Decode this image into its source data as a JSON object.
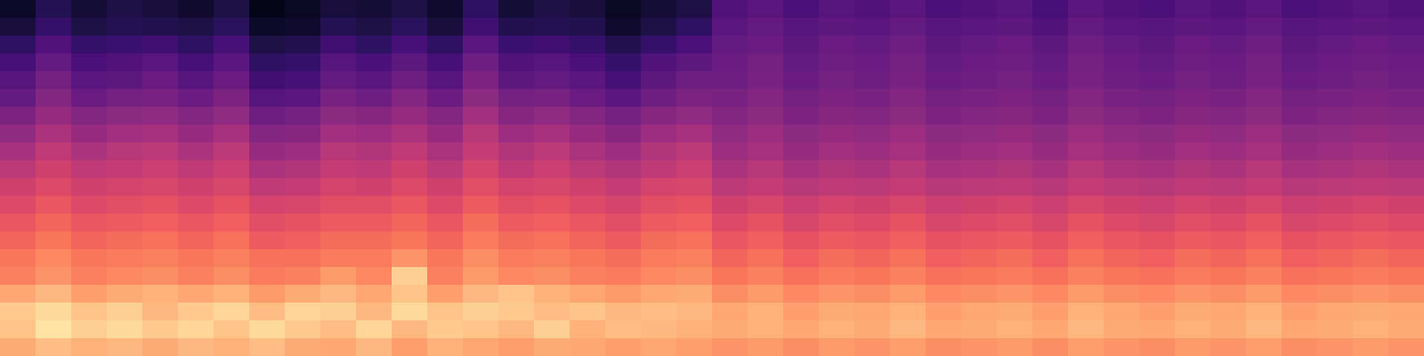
{
  "chart_data": {
    "type": "heatmap",
    "color": "magma",
    "zlim": [
      -80,
      0
    ],
    "tick_labels": false,
    "z": [
      [
        -74,
        -68,
        -72,
        -70,
        -71,
        -73,
        -70,
        -76,
        -75,
        -71,
        -72,
        -70,
        -73,
        -66,
        -72,
        -70,
        -71,
        -75,
        -72,
        -70,
        -60,
        -58,
        -61,
        -59,
        -60,
        -58,
        -61,
        -60,
        -59,
        -62,
        -58,
        -60,
        -61,
        -59,
        -60,
        -58,
        -61,
        -60,
        -59,
        -60
      ],
      [
        -71,
        -65,
        -70,
        -68,
        -69,
        -70,
        -67,
        -74,
        -73,
        -68,
        -70,
        -67,
        -71,
        -63,
        -69,
        -68,
        -69,
        -73,
        -70,
        -66,
        -58,
        -56,
        -59,
        -57,
        -58,
        -56,
        -59,
        -58,
        -57,
        -60,
        -56,
        -58,
        -59,
        -57,
        -58,
        -56,
        -59,
        -58,
        -57,
        -58
      ],
      [
        -66,
        -60,
        -65,
        -64,
        -63,
        -66,
        -62,
        -70,
        -69,
        -63,
        -66,
        -62,
        -66,
        -58,
        -64,
        -63,
        -65,
        -69,
        -65,
        -61,
        -56,
        -55,
        -57,
        -55,
        -56,
        -54,
        -57,
        -56,
        -55,
        -57,
        -54,
        -56,
        -57,
        -55,
        -56,
        -54,
        -57,
        -56,
        -55,
        -56
      ],
      [
        -62,
        -56,
        -61,
        -60,
        -58,
        -62,
        -58,
        -66,
        -65,
        -59,
        -61,
        -57,
        -62,
        -54,
        -60,
        -59,
        -61,
        -65,
        -60,
        -57,
        -55,
        -53,
        -56,
        -54,
        -55,
        -53,
        -56,
        -55,
        -54,
        -56,
        -53,
        -55,
        -56,
        -54,
        -55,
        -53,
        -56,
        -55,
        -54,
        -55
      ],
      [
        -59,
        -53,
        -58,
        -57,
        -55,
        -59,
        -55,
        -63,
        -62,
        -56,
        -58,
        -54,
        -59,
        -51,
        -57,
        -56,
        -58,
        -62,
        -57,
        -54,
        -54,
        -52,
        -55,
        -53,
        -54,
        -52,
        -55,
        -54,
        -53,
        -55,
        -52,
        -54,
        -55,
        -53,
        -54,
        -52,
        -55,
        -54,
        -53,
        -54
      ],
      [
        -56,
        -50,
        -55,
        -53,
        -52,
        -55,
        -51,
        -59,
        -58,
        -52,
        -54,
        -50,
        -55,
        -48,
        -53,
        -52,
        -55,
        -58,
        -54,
        -51,
        -52,
        -50,
        -53,
        -51,
        -52,
        -50,
        -53,
        -52,
        -51,
        -53,
        -50,
        -52,
        -53,
        -51,
        -52,
        -50,
        -53,
        -52,
        -51,
        -52
      ],
      [
        -51,
        -46,
        -50,
        -48,
        -47,
        -50,
        -47,
        -54,
        -53,
        -48,
        -49,
        -46,
        -50,
        -44,
        -49,
        -47,
        -50,
        -53,
        -49,
        -47,
        -50,
        -48,
        -51,
        -49,
        -50,
        -48,
        -51,
        -50,
        -49,
        -51,
        -48,
        -50,
        -51,
        -49,
        -50,
        -48,
        -51,
        -50,
        -49,
        -50
      ],
      [
        -47,
        -42,
        -46,
        -44,
        -43,
        -46,
        -43,
        -50,
        -49,
        -44,
        -45,
        -42,
        -46,
        -40,
        -45,
        -43,
        -46,
        -49,
        -45,
        -43,
        -47,
        -45,
        -48,
        -46,
        -47,
        -45,
        -48,
        -47,
        -46,
        -48,
        -45,
        -47,
        -48,
        -46,
        -47,
        -45,
        -48,
        -47,
        -46,
        -47
      ],
      [
        -43,
        -38,
        -42,
        -40,
        -39,
        -42,
        -39,
        -46,
        -45,
        -40,
        -41,
        -38,
        -42,
        -37,
        -41,
        -39,
        -42,
        -45,
        -41,
        -39,
        -45,
        -43,
        -46,
        -44,
        -45,
        -43,
        -46,
        -45,
        -44,
        -46,
        -43,
        -45,
        -46,
        -44,
        -45,
        -43,
        -46,
        -45,
        -44,
        -45
      ],
      [
        -39,
        -35,
        -38,
        -37,
        -36,
        -38,
        -36,
        -42,
        -41,
        -37,
        -38,
        -35,
        -39,
        -34,
        -38,
        -36,
        -39,
        -41,
        -38,
        -36,
        -42,
        -40,
        -43,
        -41,
        -42,
        -40,
        -43,
        -42,
        -41,
        -43,
        -40,
        -42,
        -43,
        -41,
        -42,
        -40,
        -43,
        -42,
        -41,
        -42
      ],
      [
        -35,
        -32,
        -35,
        -34,
        -33,
        -35,
        -33,
        -38,
        -37,
        -34,
        -35,
        -32,
        -35,
        -31,
        -34,
        -33,
        -35,
        -37,
        -34,
        -33,
        -39,
        -37,
        -40,
        -38,
        -39,
        -37,
        -40,
        -39,
        -38,
        -40,
        -37,
        -39,
        -40,
        -38,
        -39,
        -37,
        -40,
        -39,
        -38,
        -39
      ],
      [
        -32,
        -29,
        -32,
        -31,
        -30,
        -32,
        -30,
        -34,
        -33,
        -31,
        -31,
        -29,
        -32,
        -28,
        -31,
        -30,
        -32,
        -34,
        -31,
        -30,
        -35,
        -33,
        -36,
        -34,
        -35,
        -33,
        -36,
        -35,
        -34,
        -36,
        -33,
        -35,
        -36,
        -34,
        -35,
        -33,
        -36,
        -35,
        -34,
        -35
      ],
      [
        -29,
        -26,
        -29,
        -28,
        -27,
        -29,
        -27,
        -31,
        -30,
        -28,
        -28,
        -26,
        -29,
        -25,
        -28,
        -27,
        -29,
        -31,
        -28,
        -27,
        -32,
        -30,
        -33,
        -31,
        -32,
        -30,
        -33,
        -32,
        -31,
        -33,
        -30,
        -32,
        -33,
        -31,
        -32,
        -30,
        -33,
        -32,
        -31,
        -32
      ],
      [
        -26,
        -23,
        -26,
        -25,
        -24,
        -26,
        -24,
        -28,
        -27,
        -25,
        -25,
        -23,
        -26,
        -22,
        -25,
        -24,
        -26,
        -28,
        -25,
        -24,
        -29,
        -27,
        -30,
        -28,
        -29,
        -27,
        -30,
        -29,
        -28,
        -30,
        -27,
        -29,
        -30,
        -28,
        -29,
        -27,
        -30,
        -29,
        -28,
        -29
      ],
      [
        -23,
        -20,
        -23,
        -22,
        -21,
        -23,
        -21,
        -24,
        -24,
        -22,
        -22,
        -18,
        -23,
        -19,
        -22,
        -21,
        -23,
        -25,
        -22,
        -21,
        -26,
        -24,
        -27,
        -25,
        -26,
        -24,
        -27,
        -26,
        -25,
        -27,
        -24,
        -26,
        -27,
        -25,
        -26,
        -24,
        -27,
        -26,
        -25,
        -26
      ],
      [
        -21,
        -18,
        -21,
        -20,
        -19,
        -21,
        -19,
        -22,
        -21,
        -17,
        -20,
        -8,
        -21,
        -17,
        -20,
        -19,
        -21,
        -22,
        -20,
        -19,
        -23,
        -21,
        -24,
        -22,
        -23,
        -21,
        -24,
        -23,
        -22,
        -24,
        -21,
        -23,
        -24,
        -22,
        -23,
        -21,
        -24,
        -23,
        -22,
        -23
      ],
      [
        -15,
        -12,
        -16,
        -14,
        -13,
        -15,
        -13,
        -17,
        -14,
        -12,
        -15,
        -10,
        -16,
        -12,
        -10,
        -13,
        -15,
        -17,
        -15,
        -14,
        -19,
        -17,
        -20,
        -18,
        -19,
        -17,
        -20,
        -19,
        -18,
        -20,
        -17,
        -19,
        -20,
        -18,
        -19,
        -17,
        -20,
        -19,
        -18,
        -19
      ],
      [
        -9,
        -6,
        -10,
        -8,
        -12,
        -9,
        -7,
        -11,
        -7,
        -8,
        -12,
        -6,
        -10,
        -8,
        -9,
        -11,
        -10,
        -12,
        -11,
        -12,
        -15,
        -13,
        -16,
        -14,
        -15,
        -13,
        -16,
        -15,
        -14,
        -16,
        -13,
        -15,
        -16,
        -14,
        -15,
        -13,
        -16,
        -15,
        -14,
        -15
      ],
      [
        -10,
        -5,
        -8,
        -6,
        -9,
        -7,
        -10,
        -6,
        -9,
        -11,
        -7,
        -12,
        -9,
        -10,
        -12,
        -8,
        -13,
        -11,
        -12,
        -13,
        -14,
        -13,
        -15,
        -13,
        -14,
        -12,
        -15,
        -14,
        -13,
        -15,
        -12,
        -14,
        -15,
        -13,
        -14,
        -12,
        -15,
        -14,
        -13,
        -14
      ],
      [
        -14,
        -11,
        -13,
        -12,
        -14,
        -12,
        -13,
        -11,
        -14,
        -15,
        -12,
        -16,
        -13,
        -15,
        -16,
        -14,
        -15,
        -16,
        -15,
        -16,
        -18,
        -17,
        -19,
        -17,
        -18,
        -16,
        -19,
        -18,
        -17,
        -19,
        -16,
        -18,
        -19,
        -17,
        -18,
        -16,
        -19,
        -18,
        -17,
        -18
      ]
    ]
  }
}
